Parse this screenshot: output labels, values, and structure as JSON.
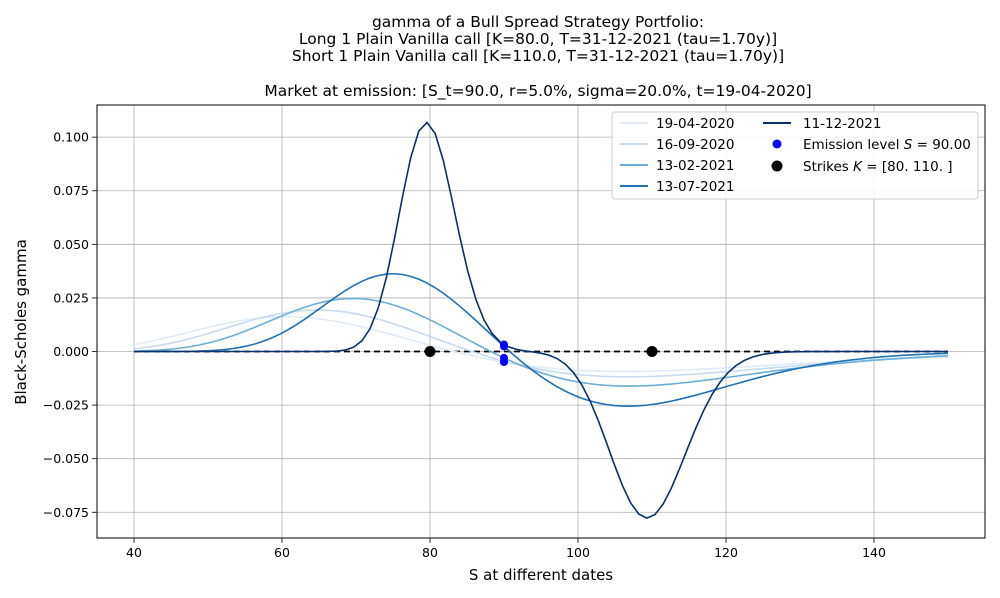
{
  "chart_data": {
    "type": "line",
    "title_lines": [
      "gamma of a Bull Spread Strategy Portfolio:",
      "Long 1 Plain Vanilla call [K=80.0, T=31-12-2021 (tau=1.70y)]",
      "Short 1 Plain Vanilla call [K=110.0, T=31-12-2021 (tau=1.70y)]",
      "",
      "Market at emission: [S_t=90.0, r=5.0%, sigma=20.0%, t=19-04-2020]"
    ],
    "xlabel": "S at different dates",
    "ylabel": "Black-Scholes gamma",
    "xlim": [
      35,
      155
    ],
    "ylim": [
      -0.087,
      0.115
    ],
    "xticks": [
      40,
      60,
      80,
      100,
      120,
      140
    ],
    "xtick_labels": [
      "40",
      "60",
      "80",
      "100",
      "120",
      "140"
    ],
    "yticks": [
      -0.075,
      -0.05,
      -0.025,
      0.0,
      0.025,
      0.05,
      0.075,
      0.1
    ],
    "ytick_labels": [
      "−0.075",
      "−0.050",
      "−0.025",
      "0.000",
      "0.025",
      "0.050",
      "0.075",
      "0.100"
    ],
    "grid": true,
    "legend_position": "upper right",
    "strategy": {
      "r": 0.05,
      "sigma": 0.2,
      "legs": [
        {
          "type": "call",
          "position": 1,
          "K": 80.0
        },
        {
          "type": "call",
          "position": -1,
          "K": 110.0
        }
      ]
    },
    "s_range": [
      40,
      150
    ],
    "series": [
      {
        "name": "19-04-2020",
        "tau": 1.7,
        "color": "#deebf7"
      },
      {
        "name": "16-09-2020",
        "tau": 1.29,
        "color": "#c6dbef"
      },
      {
        "name": "13-02-2021",
        "tau": 0.88,
        "color": "#6baed6"
      },
      {
        "name": "13-07-2021",
        "tau": 0.47,
        "color": "#2171b5"
      },
      {
        "name": "11-12-2021",
        "tau": 0.055,
        "color": "#08306b"
      }
    ],
    "emission": {
      "label": "Emission level $S = 90.00$",
      "S": 90.0,
      "color": "#0000ff"
    },
    "strikes": {
      "label": "Strikes $K = [80. 110.]$",
      "values": [
        80,
        110
      ],
      "color": "#000000"
    }
  }
}
